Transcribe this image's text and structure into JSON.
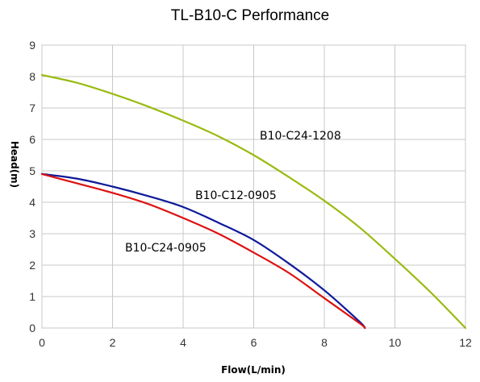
{
  "chart_data": {
    "type": "line",
    "title": "TL-B10-C Performance",
    "xlabel": "Flow(L/min)",
    "ylabel": "Head(m)",
    "xlim": [
      0,
      12
    ],
    "ylim": [
      0,
      9
    ],
    "x_ticks": [
      "0",
      "2",
      "4",
      "6",
      "8",
      "10",
      "12"
    ],
    "y_ticks": [
      "0",
      "1",
      "2",
      "3",
      "4",
      "5",
      "6",
      "7",
      "8",
      "9"
    ],
    "x_tick_values": [
      0,
      2,
      4,
      6,
      8,
      10,
      12
    ],
    "y_tick_values": [
      0,
      1,
      2,
      3,
      4,
      5,
      6,
      7,
      8,
      9
    ],
    "grid": true,
    "series": [
      {
        "name": "B10-C24-1208",
        "color": "#99bb11",
        "x": [
          0,
          1,
          2,
          3,
          4,
          5,
          6,
          7,
          8,
          9,
          10,
          11,
          12
        ],
        "y": [
          8.05,
          7.8,
          7.45,
          7.05,
          6.6,
          6.1,
          5.5,
          4.8,
          4.05,
          3.2,
          2.2,
          1.15,
          0.0
        ]
      },
      {
        "name": "B10-C12-0905",
        "color": "#0d1a99",
        "x": [
          0,
          1,
          2,
          3,
          4,
          5,
          6,
          7,
          8,
          9,
          9.15
        ],
        "y": [
          4.9,
          4.75,
          4.5,
          4.2,
          3.85,
          3.35,
          2.8,
          2.05,
          1.2,
          0.2,
          0.0
        ]
      },
      {
        "name": "B10-C24-0905",
        "color": "#dd1111",
        "x": [
          0,
          1,
          2,
          3,
          4,
          5,
          6,
          7,
          8,
          9,
          9.15
        ],
        "y": [
          4.9,
          4.6,
          4.3,
          3.95,
          3.5,
          3.0,
          2.4,
          1.75,
          0.95,
          0.15,
          0.0
        ]
      }
    ]
  }
}
